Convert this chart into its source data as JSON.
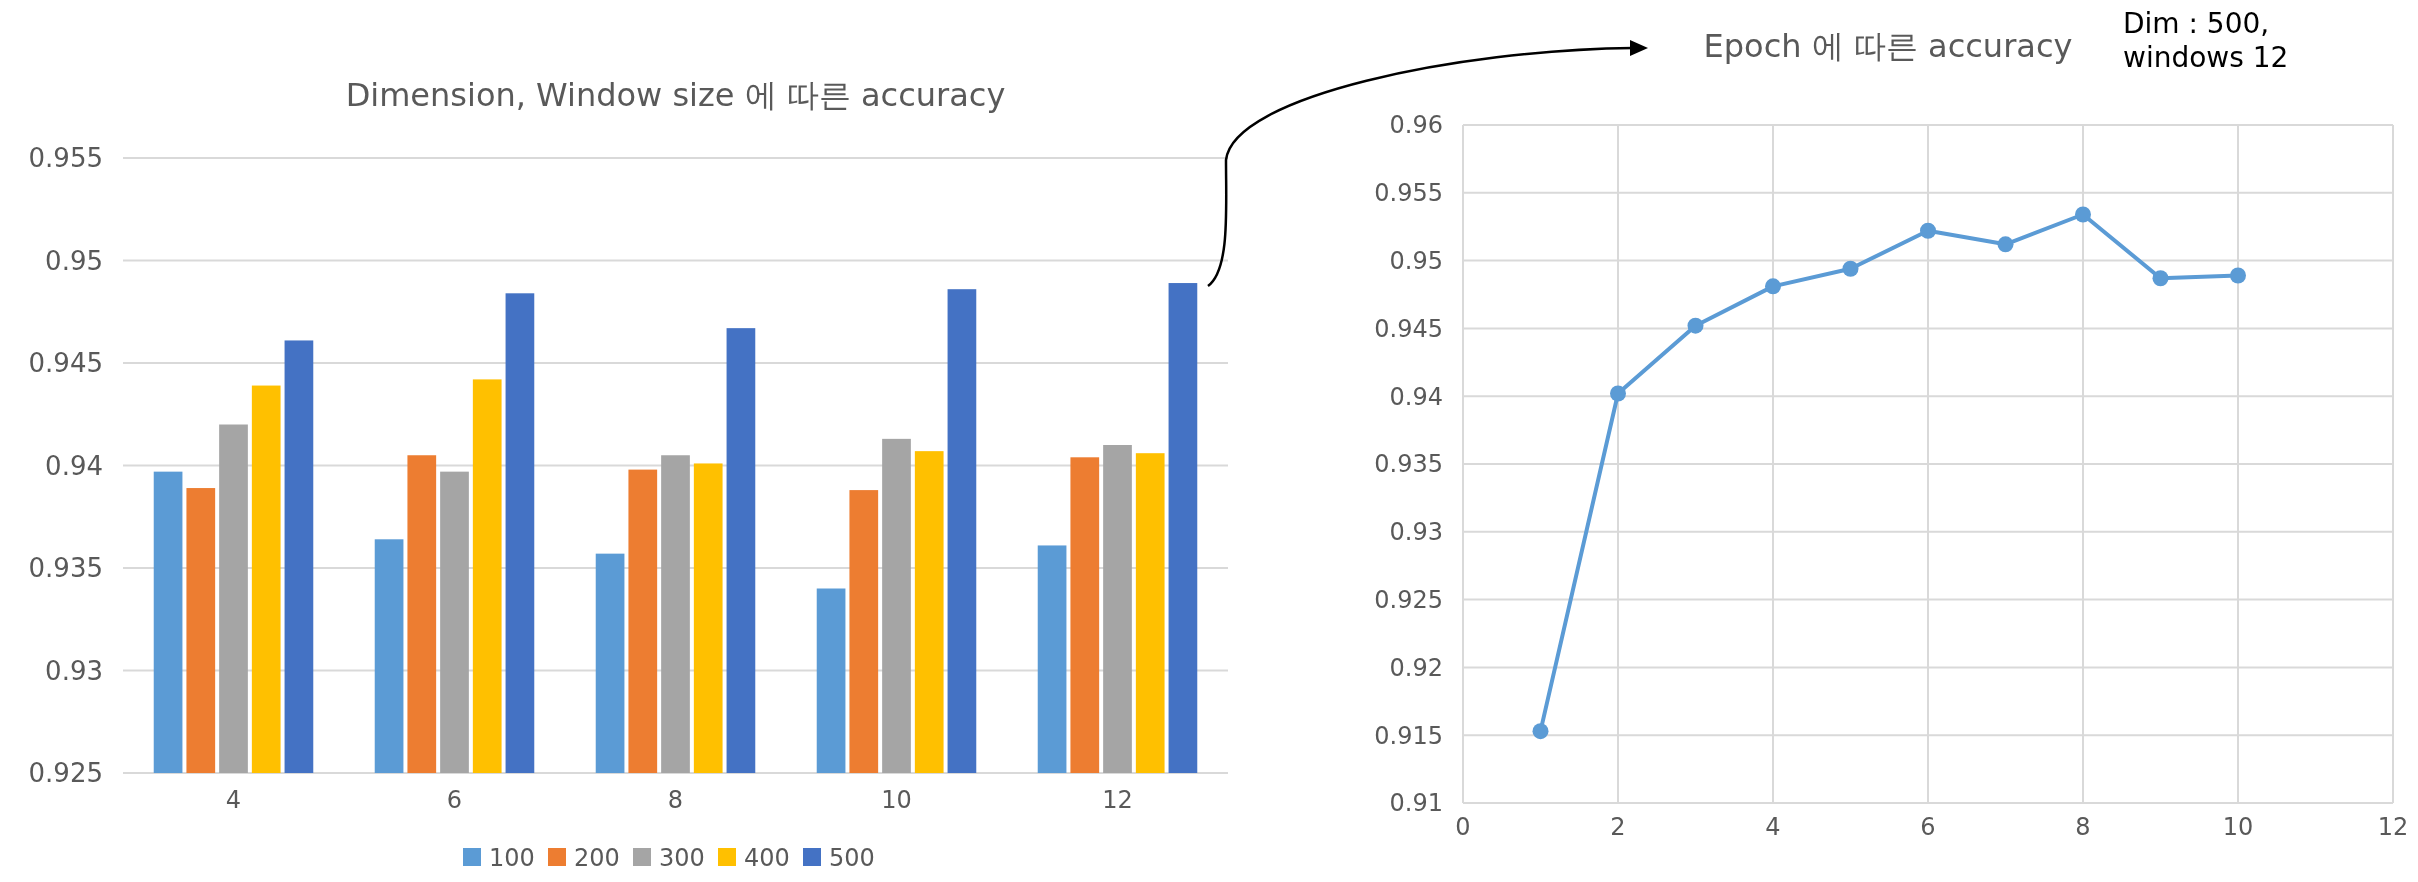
{
  "chart_data": [
    {
      "type": "bar",
      "title": "Dimension, Window size 에 따른 accuracy",
      "categories": [
        "4",
        "6",
        "8",
        "10",
        "12"
      ],
      "series": [
        {
          "name": "100",
          "color": "#5b9bd5",
          "values": [
            0.9397,
            0.9364,
            0.9357,
            0.934,
            0.9361
          ]
        },
        {
          "name": "200",
          "color": "#ed7d31",
          "values": [
            0.9389,
            0.9405,
            0.9398,
            0.9388,
            0.9404
          ]
        },
        {
          "name": "300",
          "color": "#a5a5a5",
          "values": [
            0.942,
            0.9397,
            0.9405,
            0.9413,
            0.941
          ]
        },
        {
          "name": "400",
          "color": "#ffc000",
          "values": [
            0.9439,
            0.9442,
            0.9401,
            0.9407,
            0.9406
          ]
        },
        {
          "name": "500",
          "color": "#4472c4",
          "values": [
            0.9461,
            0.9484,
            0.9467,
            0.9486,
            0.9489
          ]
        }
      ],
      "ylim": [
        0.925,
        0.955
      ],
      "yticks": [
        0.925,
        0.93,
        0.935,
        0.94,
        0.945,
        0.95,
        0.955
      ],
      "grid": "y",
      "legend": "bottom"
    },
    {
      "type": "line",
      "title": "Epoch 에 따른 accuracy",
      "x": [
        1,
        2,
        3,
        4,
        5,
        6,
        7,
        8,
        9,
        10
      ],
      "series": [
        {
          "color": "#5b9bd5",
          "values": [
            0.9153,
            0.9402,
            0.9452,
            0.9481,
            0.9494,
            0.9522,
            0.9512,
            0.9534,
            0.9487,
            0.9489
          ]
        }
      ],
      "xlim": [
        0,
        12
      ],
      "xticks": [
        0,
        2,
        4,
        6,
        8,
        10,
        12
      ],
      "ylim": [
        0.91,
        0.96
      ],
      "yticks": [
        0.91,
        0.915,
        0.92,
        0.925,
        0.93,
        0.935,
        0.94,
        0.945,
        0.95,
        0.955,
        0.96
      ],
      "grid": true,
      "marker": "circle",
      "annotations": [
        "Dim : 500, windows 12"
      ]
    }
  ]
}
